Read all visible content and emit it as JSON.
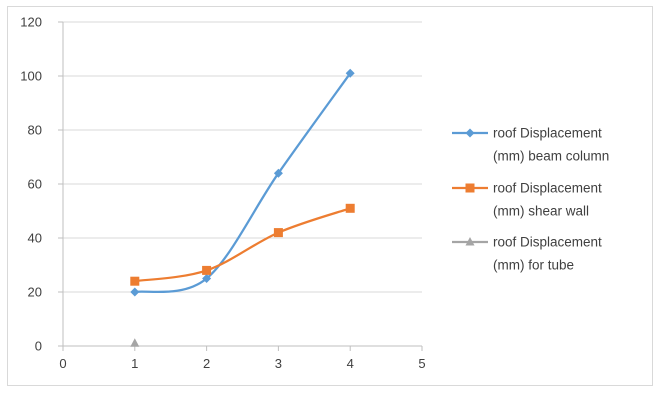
{
  "chart_data": {
    "type": "line",
    "smooth": true,
    "x": [
      1,
      2,
      3,
      4
    ],
    "xlim": [
      0,
      5
    ],
    "ylim": [
      0,
      120
    ],
    "xticks": [
      "0",
      "1",
      "2",
      "3",
      "4",
      "5"
    ],
    "yticks": [
      "0",
      "20",
      "40",
      "60",
      "80",
      "100",
      "120"
    ],
    "grid": "horizontal",
    "legend_position": "right",
    "series": [
      {
        "name_lines": [
          "roof Displacement",
          "(mm) beam column"
        ],
        "x": [
          1,
          2,
          3,
          4
        ],
        "values": [
          20,
          25,
          64,
          101
        ],
        "color": "#5b9bd5",
        "marker": "diamond"
      },
      {
        "name_lines": [
          " roof Displacement",
          "(mm) shear wall"
        ],
        "x": [
          1,
          2,
          3,
          4
        ],
        "values": [
          24,
          28,
          42,
          51
        ],
        "color": "#ed7d31",
        "marker": "square"
      },
      {
        "name_lines": [
          "roof Displacement",
          "(mm) for tube"
        ],
        "x": [
          1
        ],
        "values": [
          1
        ],
        "color": "#a5a5a5",
        "marker": "triangle"
      }
    ]
  }
}
